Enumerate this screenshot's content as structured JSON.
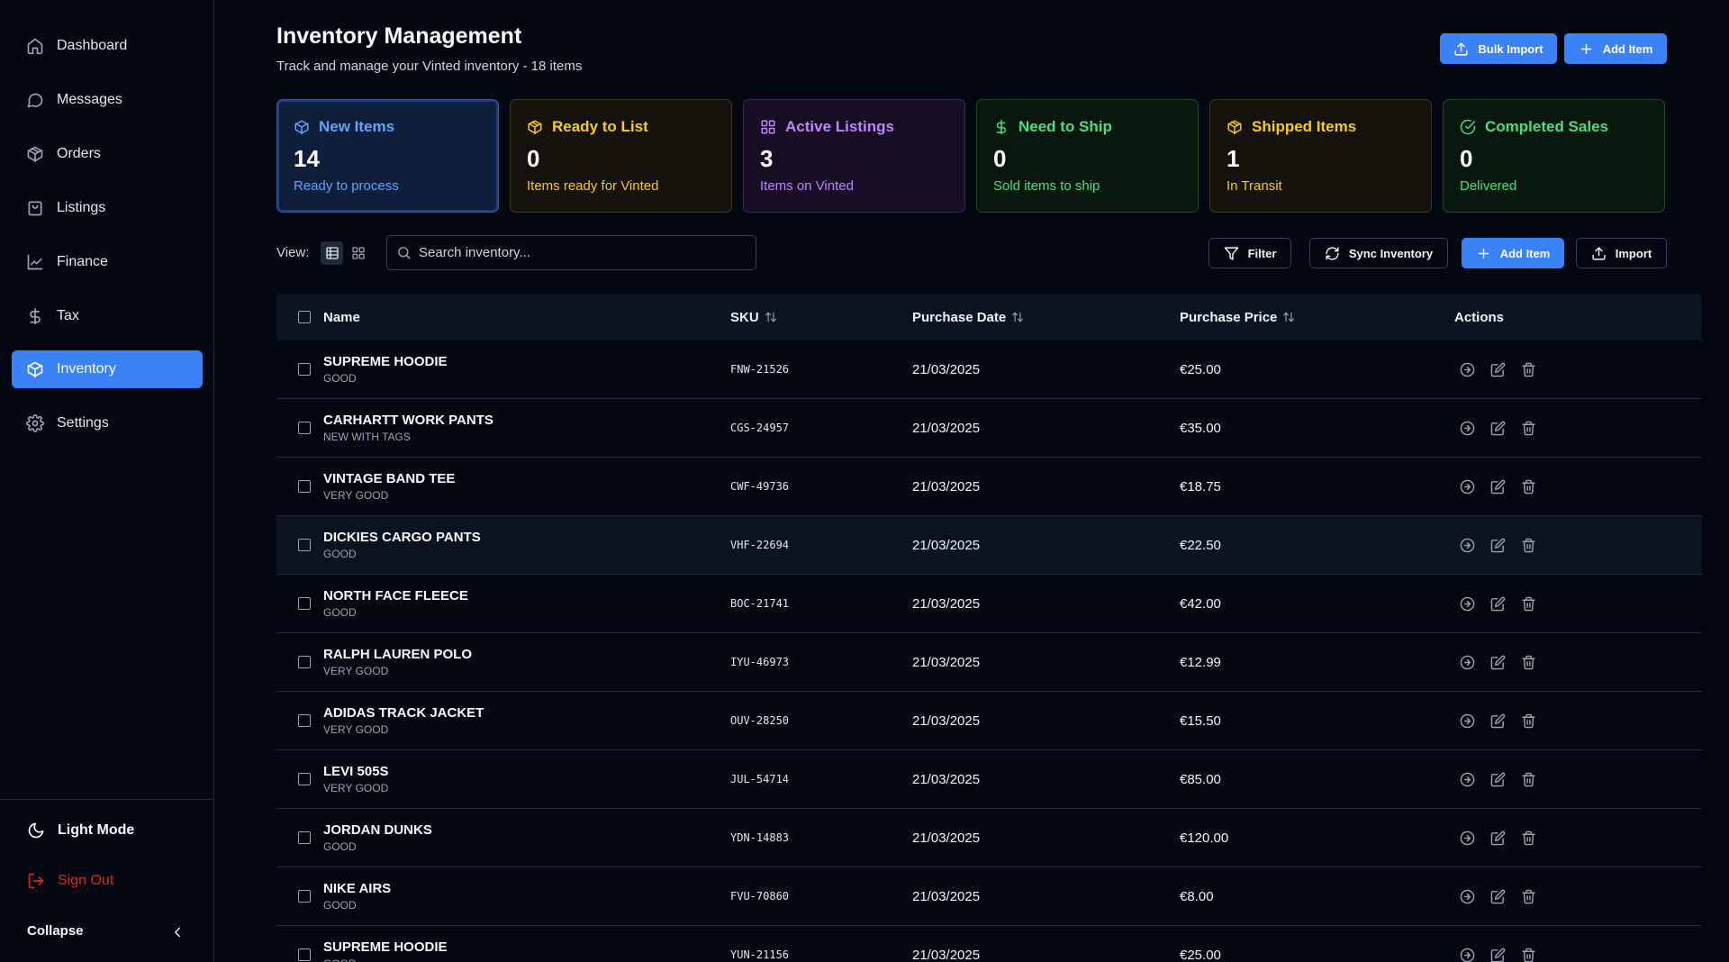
{
  "sidebar": {
    "items": [
      {
        "label": "Dashboard",
        "icon": "home-icon"
      },
      {
        "label": "Messages",
        "icon": "message-icon"
      },
      {
        "label": "Orders",
        "icon": "package-icon"
      },
      {
        "label": "Listings",
        "icon": "shopping-bag-icon"
      },
      {
        "label": "Finance",
        "icon": "line-chart-icon"
      },
      {
        "label": "Tax",
        "icon": "dollar-icon"
      },
      {
        "label": "Inventory",
        "icon": "box-icon",
        "active": true
      },
      {
        "label": "Settings",
        "icon": "gear-icon"
      }
    ],
    "light_mode": "Light Mode",
    "sign_out": "Sign Out",
    "collapse": "Collapse"
  },
  "header": {
    "title": "Inventory Management",
    "subtitle": "Track and manage your Vinted inventory - 18 items",
    "bulk_import": "Bulk Import",
    "add_item": "Add Item"
  },
  "cards": [
    {
      "title": "New Items",
      "value": "14",
      "sub": "Ready to process",
      "icon": "box-icon",
      "color": "#60a5fa"
    },
    {
      "title": "Ready to List",
      "value": "0",
      "sub": "Items ready for Vinted",
      "icon": "package-icon",
      "color": "#facc15"
    },
    {
      "title": "Active Listings",
      "value": "3",
      "sub": "Items on Vinted",
      "icon": "grid-icon",
      "color": "#c084fc"
    },
    {
      "title": "Need to Ship",
      "value": "0",
      "sub": "Sold items to ship",
      "icon": "dollar-icon",
      "color": "#4ade80"
    },
    {
      "title": "Shipped Items",
      "value": "1",
      "sub": "In Transit",
      "icon": "package-icon",
      "color": "#facc15"
    },
    {
      "title": "Completed Sales",
      "value": "0",
      "sub": "Delivered",
      "icon": "check-circle-icon",
      "color": "#4ade80"
    }
  ],
  "toolbar": {
    "view_label": "View:",
    "search_placeholder": "Search inventory...",
    "filter": "Filter",
    "sync": "Sync Inventory",
    "add_item": "Add Item",
    "import": "Import"
  },
  "table": {
    "columns": {
      "name": "Name",
      "sku": "SKU",
      "purchase_date": "Purchase Date",
      "purchase_price": "Purchase Price",
      "actions": "Actions"
    },
    "rows": [
      {
        "name": "SUPREME HOODIE",
        "condition": "GOOD",
        "sku": "FNW-21526",
        "date": "21/03/2025",
        "price": "€25.00"
      },
      {
        "name": "CARHARTT WORK PANTS",
        "condition": "NEW WITH TAGS",
        "sku": "CGS-24957",
        "date": "21/03/2025",
        "price": "€35.00"
      },
      {
        "name": "VINTAGE BAND TEE",
        "condition": "VERY GOOD",
        "sku": "CWF-49736",
        "date": "21/03/2025",
        "price": "€18.75"
      },
      {
        "name": "DICKIES CARGO PANTS",
        "condition": "GOOD",
        "sku": "VHF-22694",
        "date": "21/03/2025",
        "price": "€22.50"
      },
      {
        "name": "NORTH FACE FLEECE",
        "condition": "GOOD",
        "sku": "BOC-21741",
        "date": "21/03/2025",
        "price": "€42.00"
      },
      {
        "name": "RALPH LAUREN POLO",
        "condition": "VERY GOOD",
        "sku": "IYU-46973",
        "date": "21/03/2025",
        "price": "€12.99"
      },
      {
        "name": "ADIDAS TRACK JACKET",
        "condition": "VERY GOOD",
        "sku": "OUV-28250",
        "date": "21/03/2025",
        "price": "€15.50"
      },
      {
        "name": "LEVI 505S",
        "condition": "VERY GOOD",
        "sku": "JUL-54714",
        "date": "21/03/2025",
        "price": "€85.00"
      },
      {
        "name": "JORDAN DUNKS",
        "condition": "GOOD",
        "sku": "YDN-14883",
        "date": "21/03/2025",
        "price": "€120.00"
      },
      {
        "name": "NIKE AIRS",
        "condition": "GOOD",
        "sku": "FVU-70860",
        "date": "21/03/2025",
        "price": "€8.00"
      },
      {
        "name": "SUPREME HOODIE",
        "condition": "GOOD",
        "sku": "YUN-21156",
        "date": "21/03/2025",
        "price": "€25.00"
      }
    ]
  }
}
